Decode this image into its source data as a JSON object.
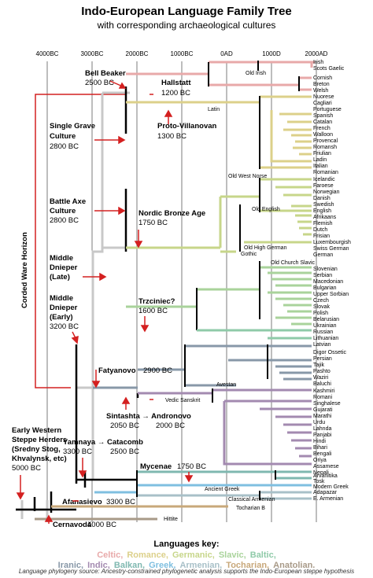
{
  "title": "Indo-European Language Family Tree",
  "subtitle": "with corresponding archaeological cultures",
  "axis_ticks": [
    "4000BC",
    "3000BC",
    "2000BC",
    "1000BC",
    "0AD",
    "1000D",
    "2000AD"
  ],
  "cultures": {
    "bell_beaker": {
      "name": "Bell Beaker",
      "date": "2500 BC"
    },
    "hallstatt": {
      "name": "Hallstatt",
      "date": "1200 BC"
    },
    "single_grave": {
      "name1": "Single Grave",
      "name2": "Culture",
      "date": "2800 BC"
    },
    "proto_villanovan": {
      "name": "Proto-Villanovan",
      "date": "1300 BC"
    },
    "battle_axe": {
      "name1": "Battle Axe",
      "name2": "Culture",
      "date": "2800 BC"
    },
    "nordic_bronze": {
      "name": "Nordic Bronze Age",
      "date": "1750 BC"
    },
    "middle_dnieper_late": {
      "name1": "Middle",
      "name2": "Dnieper",
      "name3": "(Late)"
    },
    "middle_dnieper_early": {
      "name1": "Middle",
      "name2": "Dnieper",
      "name3": "(Early)",
      "date": "3200 BC"
    },
    "trzciniec": {
      "name": "Trzciniec?",
      "date": "1600 BC"
    },
    "fatyanovo": {
      "name": "Fatyanovo",
      "date": "2900 BC"
    },
    "sintashta": {
      "name": "Sintashta → Andronovo",
      "date1": "2050 BC",
      "date2": "2000 BC"
    },
    "early_western": {
      "name1": "Early Western",
      "name2": "Steppe Herders",
      "name3": "(Sredny Stog,",
      "name4": "Khvalynsk, etc)",
      "date": "5000 BC"
    },
    "yamnaya": {
      "name": "Yamnaya → Catacomb",
      "date1": "3300 BC",
      "date2": "2500 BC"
    },
    "mycenae": {
      "name": "Mycenae",
      "date": "1750 BC"
    },
    "afanasievo": {
      "name": "Afanasievo",
      "date": "3300 BC"
    },
    "cernavoda": {
      "name": "Cernavodă",
      "date": "4000 BC"
    }
  },
  "horizon_label": "Corded Ware Horizon",
  "inner_labels": {
    "old_irish": "Old Irish",
    "latin": "Latin",
    "old_west_norse": "Old West Norse",
    "old_english": "Old English",
    "old_high_german": "Old High German",
    "gothic": "Gothic",
    "old_church_slavic": "Old Church Slavic",
    "avestan": "Avestan",
    "vedic_sanskrit": "Vedic Sanskrit",
    "ancient_greek": "Ancient Greek",
    "classical_armenian": "Classical Armenian",
    "tocharian_b": "Tocharian B",
    "hittite": "Hittite"
  },
  "languages": {
    "celtic": [
      "Irish",
      "Scots Gaelic",
      "Cornish",
      "Breton",
      "Welsh"
    ],
    "romance": [
      "Nuorese",
      "Cagliari",
      "Portuguese",
      "Spanish",
      "Catalan",
      "French",
      "Walloon",
      "Provencal",
      "Romansh",
      "Friulian",
      "Ladin",
      "Italian",
      "Romanian"
    ],
    "germanic": [
      "Icelandic",
      "Faroese",
      "Norwegian",
      "Danish",
      "Swedish",
      "English",
      "Afrikaans",
      "Flemish",
      "Dutch",
      "Frisian",
      "Luxembourgish",
      "Swiss German",
      "German"
    ],
    "slavic": [
      "Slovenian",
      "Serbian",
      "Macedonian",
      "Bulgarian",
      "Upper Sorbian",
      "Czech",
      "Slovak",
      "Polish"
    ],
    "baltic_east": [
      "Belarusian",
      "Ukrainian",
      "Russian"
    ],
    "baltic": [
      "Lithuanian",
      "Latvian"
    ],
    "iranic": [
      "Digor Ossetic",
      "Persian",
      "Tajik",
      "Pashto",
      "Waziri",
      "Baluchi"
    ],
    "indic": [
      "Kashmiri",
      "Romani",
      "Singhalese",
      "Gujarati",
      "Marathi",
      "Urdu",
      "Lahnda",
      "Panjabi",
      "Hindi",
      "Bihari",
      "Bengali",
      "Oriya",
      "Assamese",
      "Nepali"
    ],
    "balkan": [
      "Arvanitika",
      "Tosk"
    ],
    "greek": [
      "Modern Greek"
    ],
    "armenian": [
      "Adapazar",
      "E. Armenian"
    ]
  },
  "key": {
    "title": "Languages key:",
    "line1": [
      {
        "name": "Celtic,",
        "color": "#e8a9a9"
      },
      {
        "name": "Romance,",
        "color": "#dcd08a"
      },
      {
        "name": "Germanic,",
        "color": "#c7d68a"
      },
      {
        "name": "Slavic,",
        "color": "#a9d39b"
      },
      {
        "name": "Baltic,",
        "color": "#8fcaa8"
      }
    ],
    "line2": [
      {
        "name": "Iranic,",
        "color": "#8898a8"
      },
      {
        "name": "Indic,",
        "color": "#a38ab0"
      },
      {
        "name": "Balkan,",
        "color": "#7fb8b0"
      },
      {
        "name": "Greek,",
        "color": "#7fbfe0"
      },
      {
        "name": "Armenian,",
        "color": "#a8c0c8"
      },
      {
        "name": "Tocharian,",
        "color": "#c8a87a"
      },
      {
        "name": "Anatolian.",
        "color": "#a89a88"
      }
    ]
  },
  "source": "Language phylogeny source: Ancestry-constrained phylogenetic analysis supports the Indo-European steppe hypothesis"
}
